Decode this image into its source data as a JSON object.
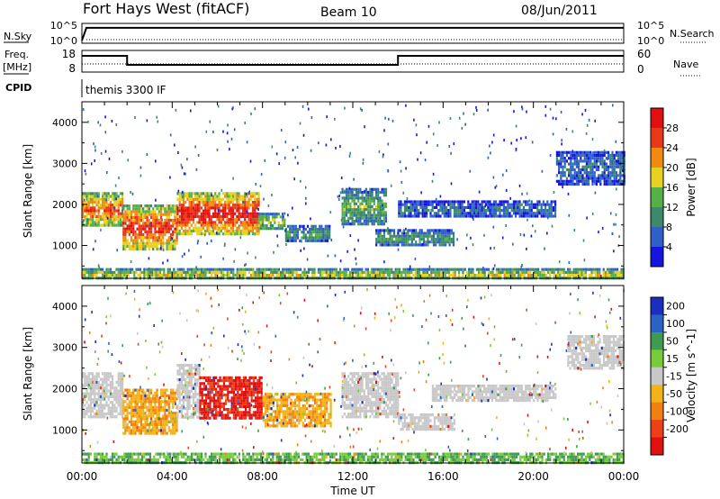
{
  "header": {
    "station": "Fort Hays West (fitACF)",
    "beam": "Beam 10",
    "date": "08/Jun/2011",
    "cpid_text": "themis 3300 IF"
  },
  "left_labels": {
    "nsky": "N.Sky",
    "freq_line1": "Freq.",
    "freq_line2": "[MHz]",
    "cpid": "CPID"
  },
  "right_labels": {
    "nsearch": "N.Search",
    "nave": "Nave"
  },
  "xaxis": {
    "label": "Time UT",
    "ticks": [
      "00:00",
      "04:00",
      "08:00",
      "12:00",
      "16:00",
      "20:00",
      "00:00"
    ]
  },
  "chart_data": [
    {
      "type": "line",
      "panel": "noise",
      "ylabels_left": [
        "10^5",
        "10^0"
      ],
      "ylabels_right": [
        "10^5",
        "10^0"
      ],
      "series": [
        {
          "name": "N.Sky",
          "style": "solid",
          "x_hours": [
            0,
            0.2,
            24
          ],
          "y_log10": [
            0.3,
            4.2,
            4.2
          ]
        },
        {
          "name": "N.Search",
          "style": "dotted",
          "x_hours": [
            0.2,
            24
          ],
          "y_log10": [
            0.0,
            0.0
          ]
        }
      ]
    },
    {
      "type": "line",
      "panel": "frequency",
      "ylabels_left": [
        "18",
        "8"
      ],
      "ylabels_right": [
        "60",
        "0"
      ],
      "series": [
        {
          "name": "Freq.",
          "style": "solid",
          "x_hours": [
            0,
            2.0,
            2.0,
            14.0,
            14.0,
            24
          ],
          "y": [
            16,
            16,
            11,
            11,
            16,
            16
          ]
        },
        {
          "name": "Nave",
          "style": "dotted",
          "x_hours": [
            0,
            24
          ],
          "y": [
            11.5,
            11.5
          ]
        }
      ]
    },
    {
      "type": "heatmap",
      "panel": "power",
      "ylabel": "Slant Range [km]",
      "yticks": [
        "1000",
        "2000",
        "3000",
        "4000"
      ],
      "ylim": [
        200,
        4500
      ],
      "xlim_hours": [
        0,
        24
      ],
      "colorbar": {
        "label": "Power [dB]",
        "ticks": [
          "4",
          "8",
          "12",
          "16",
          "20",
          "24",
          "28"
        ],
        "colors": [
          "#1515e0",
          "#2f5fc8",
          "#3d8a6a",
          "#55b048",
          "#e8d020",
          "#f08a10",
          "#e8381a",
          "#e01010"
        ]
      },
      "regions": [
        {
          "t": [
            0.0,
            1.8
          ],
          "r": [
            1500,
            2300
          ],
          "level": 0.72
        },
        {
          "t": [
            1.8,
            4.2
          ],
          "r": [
            900,
            2000
          ],
          "level": 0.78
        },
        {
          "t": [
            4.2,
            7.8
          ],
          "r": [
            1300,
            2300
          ],
          "level": 0.85
        },
        {
          "t": [
            7.8,
            9.0
          ],
          "r": [
            1400,
            1800
          ],
          "level": 0.45
        },
        {
          "t": [
            9.0,
            11.0
          ],
          "r": [
            1100,
            1500
          ],
          "level": 0.3
        },
        {
          "t": [
            11.5,
            13.5
          ],
          "r": [
            1500,
            2400
          ],
          "level": 0.38
        },
        {
          "t": [
            13.0,
            16.5
          ],
          "r": [
            1000,
            1400
          ],
          "level": 0.3
        },
        {
          "t": [
            14.0,
            21.0
          ],
          "r": [
            1700,
            2100
          ],
          "level": 0.2
        },
        {
          "t": [
            21.0,
            24.0
          ],
          "r": [
            2500,
            3300
          ],
          "level": 0.22
        },
        {
          "t": [
            0.0,
            24.0
          ],
          "r": [
            200,
            450
          ],
          "level": 0.5
        }
      ]
    },
    {
      "type": "heatmap",
      "panel": "velocity",
      "ylabel": "Slant Range [km]",
      "yticks": [
        "1000",
        "2000",
        "3000",
        "4000"
      ],
      "ylim": [
        200,
        4500
      ],
      "xlim_hours": [
        0,
        24
      ],
      "colorbar": {
        "label": "Velocity [m s^-1]",
        "ticks": [
          "200",
          "100",
          "50",
          "15",
          "-15",
          "-50",
          "-100",
          "-200"
        ],
        "colors": [
          "#1a2fbf",
          "#2a62c8",
          "#3f9a52",
          "#78cc3c",
          "#c8c8c8",
          "#f2b21a",
          "#f08010",
          "#ee4018",
          "#e01010"
        ]
      },
      "regions": [
        {
          "t": [
            0.0,
            1.8
          ],
          "r": [
            1300,
            2400
          ],
          "class": "gray"
        },
        {
          "t": [
            1.8,
            4.2
          ],
          "r": [
            900,
            2000
          ],
          "class": "orange"
        },
        {
          "t": [
            4.2,
            5.2
          ],
          "r": [
            1300,
            2600
          ],
          "class": "gray"
        },
        {
          "t": [
            5.2,
            8.0
          ],
          "r": [
            1300,
            2300
          ],
          "class": "red"
        },
        {
          "t": [
            8.0,
            11.0
          ],
          "r": [
            1100,
            1900
          ],
          "class": "orange"
        },
        {
          "t": [
            11.5,
            14.0
          ],
          "r": [
            1300,
            2400
          ],
          "class": "gray"
        },
        {
          "t": [
            14.0,
            16.5
          ],
          "r": [
            1000,
            1400
          ],
          "class": "gray"
        },
        {
          "t": [
            15.5,
            21.0
          ],
          "r": [
            1700,
            2100
          ],
          "class": "gray"
        },
        {
          "t": [
            21.5,
            24.0
          ],
          "r": [
            2500,
            3300
          ],
          "class": "gray"
        },
        {
          "t": [
            0.0,
            24.0
          ],
          "r": [
            200,
            450
          ],
          "class": "green"
        }
      ]
    }
  ]
}
